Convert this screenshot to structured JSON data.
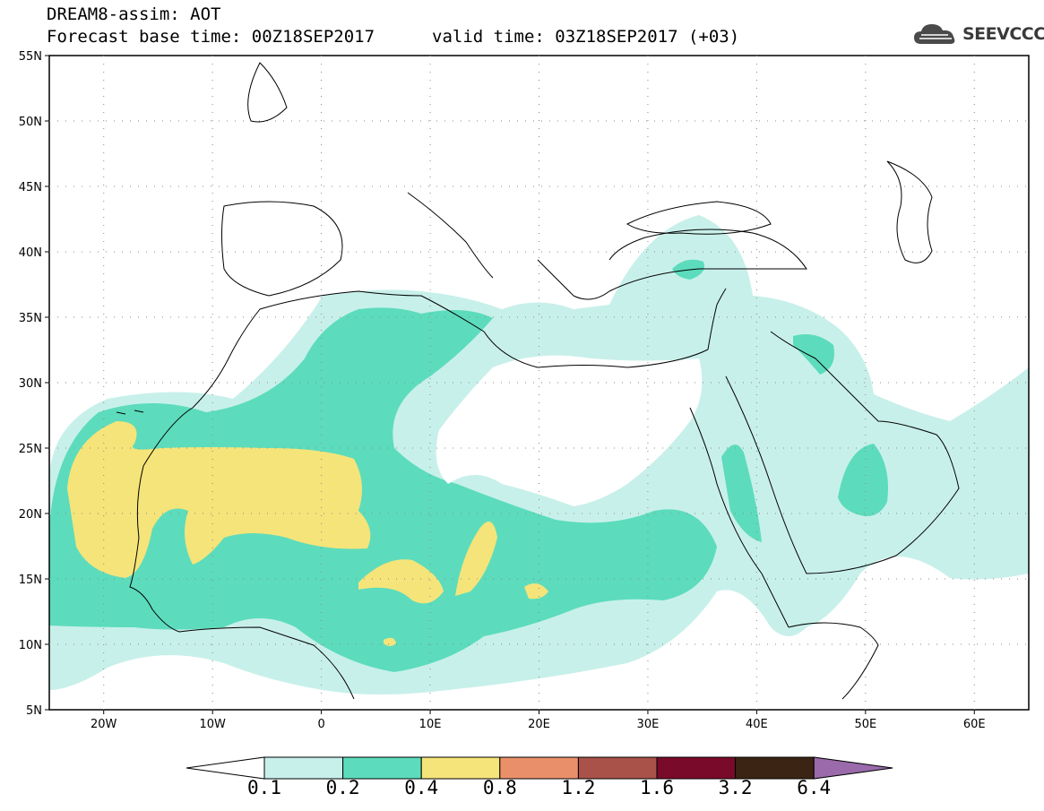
{
  "header": {
    "title": "DREAM8-assim: AOT",
    "base_time": "Forecast base time: 00Z18SEP2017",
    "valid_time": "valid time: 03Z18SEP2017 (+03)",
    "logo_text": "SEEVCCC"
  },
  "map": {
    "lat_ticks": [
      "55N",
      "50N",
      "45N",
      "40N",
      "35N",
      "30N",
      "25N",
      "20N",
      "15N",
      "10N",
      "5N"
    ],
    "lon_ticks": [
      "20W",
      "10W",
      "0",
      "10E",
      "20E",
      "30E",
      "40E",
      "50E",
      "60E"
    ],
    "lon_range": [
      -25,
      65
    ],
    "lat_range": [
      5,
      55
    ],
    "grid": "dotted"
  },
  "colorbar": {
    "labels": [
      "0.1",
      "0.2",
      "0.4",
      "0.8",
      "1.2",
      "1.6",
      "3.2",
      "6.4"
    ],
    "colors": [
      "#c8f0ea",
      "#5cdcbc",
      "#f5e47a",
      "#e9906a",
      "#a9524a",
      "#7a0a2a",
      "#3c2414",
      "#9a6aaa"
    ]
  }
}
